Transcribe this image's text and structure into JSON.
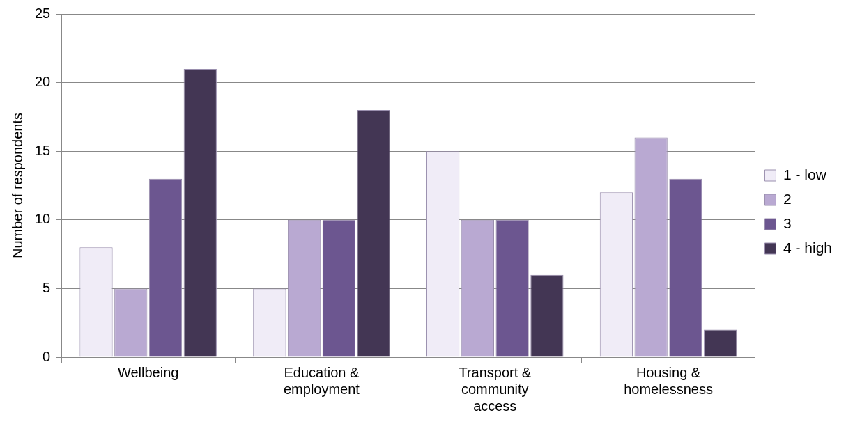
{
  "chart_data": {
    "type": "bar",
    "ylabel": "Number of respondents",
    "categories": [
      "Wellbeing",
      "Education & employment",
      "Transport & community access",
      "Housing & homelessness"
    ],
    "series": [
      {
        "name": "1 - low",
        "color": "#f0ecf7",
        "values": [
          8,
          5,
          15,
          12
        ]
      },
      {
        "name": "2",
        "color": "#b9a9d2",
        "values": [
          5,
          10,
          10,
          16
        ]
      },
      {
        "name": "3",
        "color": "#6c5690",
        "values": [
          13,
          10,
          10,
          13
        ]
      },
      {
        "name": "4 - high",
        "color": "#433654",
        "values": [
          21,
          18,
          6,
          2
        ]
      }
    ],
    "ylim": [
      0,
      25
    ],
    "yticks": [
      0,
      5,
      10,
      15,
      20,
      25
    ],
    "grid": "y",
    "legend": "right"
  }
}
